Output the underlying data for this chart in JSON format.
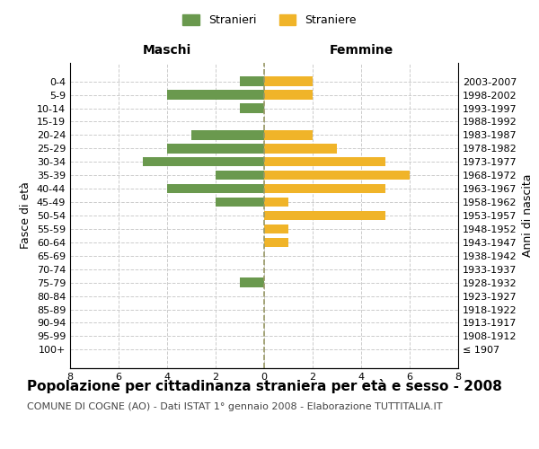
{
  "age_groups": [
    "100+",
    "95-99",
    "90-94",
    "85-89",
    "80-84",
    "75-79",
    "70-74",
    "65-69",
    "60-64",
    "55-59",
    "50-54",
    "45-49",
    "40-44",
    "35-39",
    "30-34",
    "25-29",
    "20-24",
    "15-19",
    "10-14",
    "5-9",
    "0-4"
  ],
  "birth_years": [
    "≤ 1907",
    "1908-1912",
    "1913-1917",
    "1918-1922",
    "1923-1927",
    "1928-1932",
    "1933-1937",
    "1938-1942",
    "1943-1947",
    "1948-1952",
    "1953-1957",
    "1958-1962",
    "1963-1967",
    "1968-1972",
    "1973-1977",
    "1978-1982",
    "1983-1987",
    "1988-1992",
    "1993-1997",
    "1998-2002",
    "2003-2007"
  ],
  "maschi": [
    0,
    0,
    0,
    0,
    0,
    1,
    0,
    0,
    0,
    0,
    0,
    2,
    4,
    2,
    5,
    4,
    3,
    0,
    1,
    4,
    1
  ],
  "femmine": [
    0,
    0,
    0,
    0,
    0,
    0,
    0,
    0,
    1,
    1,
    5,
    1,
    5,
    6,
    5,
    3,
    2,
    0,
    0,
    2,
    2
  ],
  "maschi_color": "#6a994e",
  "femmine_color": "#f0b429",
  "background_color": "#ffffff",
  "grid_color": "#cccccc",
  "title": "Popolazione per cittadinanza straniera per età e sesso - 2008",
  "subtitle": "COMUNE DI COGNE (AO) - Dati ISTAT 1° gennaio 2008 - Elaborazione TUTTITALIA.IT",
  "xlabel_left": "Maschi",
  "xlabel_right": "Femmine",
  "ylabel_left": "Fasce di età",
  "ylabel_right": "Anni di nascita",
  "legend_maschi": "Stranieri",
  "legend_femmine": "Straniere",
  "xlim": 8,
  "title_fontsize": 11,
  "subtitle_fontsize": 8,
  "axis_label_fontsize": 9,
  "tick_fontsize": 8
}
